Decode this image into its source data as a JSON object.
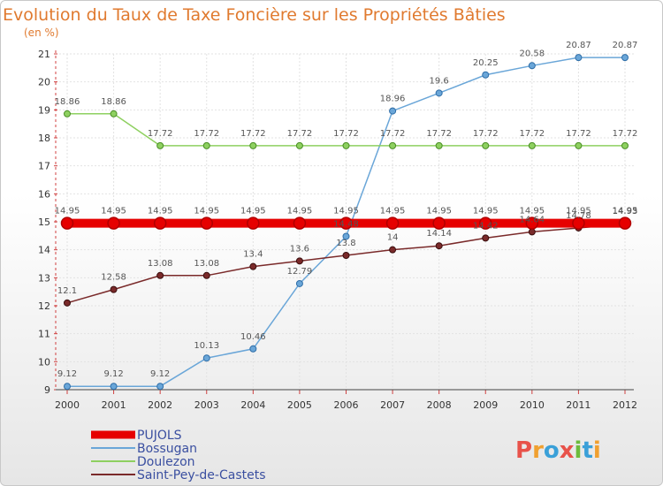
{
  "title": "Evolution du Taux de Taxe Foncière sur les Propriétés Bâties",
  "subtitle": "(en %)",
  "logo": {
    "text": "Proxiti",
    "letters": [
      {
        "ch": "P",
        "color": "#e8524a"
      },
      {
        "ch": "r",
        "color": "#f0a030"
      },
      {
        "ch": "o",
        "color": "#3aa0d8"
      },
      {
        "ch": "x",
        "color": "#e8524a"
      },
      {
        "ch": "i",
        "color": "#6dbb3c"
      },
      {
        "ch": "t",
        "color": "#3aa0d8"
      },
      {
        "ch": "i",
        "color": "#f0a030"
      }
    ]
  },
  "chart_data": {
    "type": "line",
    "title": "Evolution du Taux de Taxe Foncière sur les Propriétés Bâties",
    "subtitle": "(en %)",
    "x": [
      "2000",
      "2001",
      "2002",
      "2003",
      "2004",
      "2005",
      "2006",
      "2007",
      "2008",
      "2009",
      "2010",
      "2011",
      "2012"
    ],
    "ylim": [
      9,
      21
    ],
    "yticks": [
      9,
      10,
      11,
      12,
      13,
      14,
      15,
      16,
      17,
      18,
      19,
      20,
      21
    ],
    "grid": true,
    "legend_position": "bottom-left",
    "series": [
      {
        "name": "PUJOLS",
        "color": "#e60000",
        "values": [
          14.95,
          14.95,
          14.95,
          14.95,
          14.95,
          14.95,
          14.95,
          14.95,
          14.95,
          14.95,
          14.95,
          14.95,
          14.95
        ],
        "labels": [
          "14.95",
          "14.95",
          "14.95",
          "14.95",
          "14.95",
          "14.95",
          "14.95",
          "14.95",
          "14.95",
          "14.95",
          "14.95",
          "14.95",
          "14.95"
        ]
      },
      {
        "name": "Bossugan",
        "color": "#6aa6d8",
        "values": [
          9.12,
          9.12,
          9.12,
          10.13,
          10.46,
          12.79,
          14.48,
          18.96,
          19.6,
          20.25,
          20.58,
          20.87,
          20.87
        ],
        "labels": [
          "9.12",
          "9.12",
          "9.12",
          "10.13",
          "10.46",
          "12.79",
          "14.48",
          "18.96",
          "19.6",
          "20.25",
          "20.58",
          "20.87",
          "20.87"
        ]
      },
      {
        "name": "Doulezon",
        "color": "#8ed060",
        "values": [
          18.86,
          18.86,
          17.72,
          17.72,
          17.72,
          17.72,
          17.72,
          17.72,
          17.72,
          17.72,
          17.72,
          17.72,
          17.72
        ],
        "labels": [
          "18.86",
          "18.86",
          "17.72",
          "17.72",
          "17.72",
          "17.72",
          "17.72",
          "17.72",
          "17.72",
          "17.72",
          "17.72",
          "17.72",
          "17.72"
        ]
      },
      {
        "name": "Saint-Pey-de-Castets",
        "color": "#7a2a2a",
        "values": [
          12.1,
          12.58,
          13.08,
          13.08,
          13.4,
          13.6,
          13.8,
          14.0,
          14.14,
          14.42,
          14.64,
          14.78,
          14.93
        ],
        "labels": [
          "12.1",
          "12.58",
          "13.08",
          "13.08",
          "13.4",
          "13.6",
          "13.8",
          "14",
          "14.14",
          "14.42",
          "14.64",
          "14.78",
          "14.93"
        ]
      }
    ]
  }
}
